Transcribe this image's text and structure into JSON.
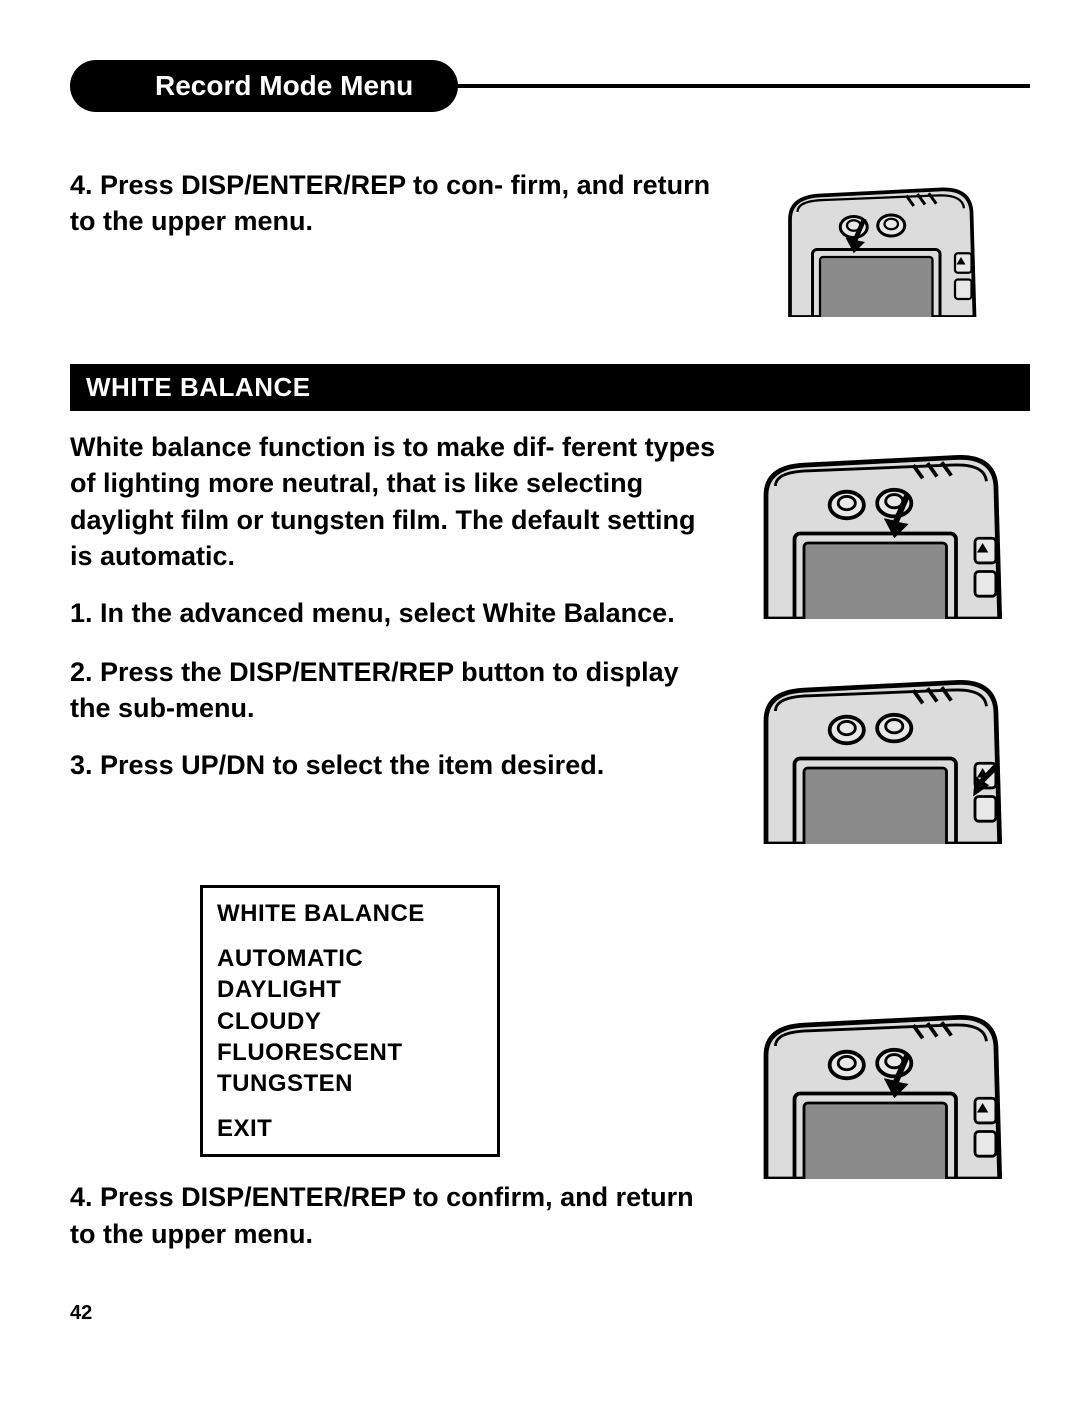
{
  "header": {
    "title": "Record Mode Menu"
  },
  "intro": {
    "step4": "4. Press DISP/ENTER/REP to con-\nfirm, and return to the upper menu."
  },
  "wb": {
    "bar_title": "WHITE BALANCE",
    "desc": "White balance function is to make dif-\nferent types of lighting more neutral, that is like selecting daylight film or tungsten film. The default setting is automatic.",
    "step1": "1. In the advanced menu, select White Balance.",
    "step2": "2. Press the DISP/ENTER/REP button to display the sub-menu.",
    "step3": "3. Press UP/DN to select the item desired.",
    "step4": "4. Press DISP/ENTER/REP to confirm, and return to the upper menu."
  },
  "menu": {
    "title": "WHITE BALANCE",
    "items": [
      "AUTOMATIC",
      "DAYLIGHT",
      "CLOUDY",
      "FLUORESCENT",
      "TUNGSTEN"
    ],
    "exit": "EXIT"
  },
  "page_number": "42",
  "styles": {
    "bg": "#ffffff",
    "fg": "#000000",
    "pill_bg": "#000000",
    "pill_fg": "#ffffff",
    "bar_bg": "#000000",
    "bar_fg": "#ffffff",
    "body_fontsize": 27,
    "bar_fontsize": 26,
    "menu_fontsize": 24
  },
  "camera": {
    "body_fill": "#dcdcdc",
    "body_stroke": "#000000",
    "screen_fill": "#8a8a8a",
    "dial_fill": "#e8e8e8",
    "arrow_fill": "#000000",
    "stroke_width": 5
  }
}
